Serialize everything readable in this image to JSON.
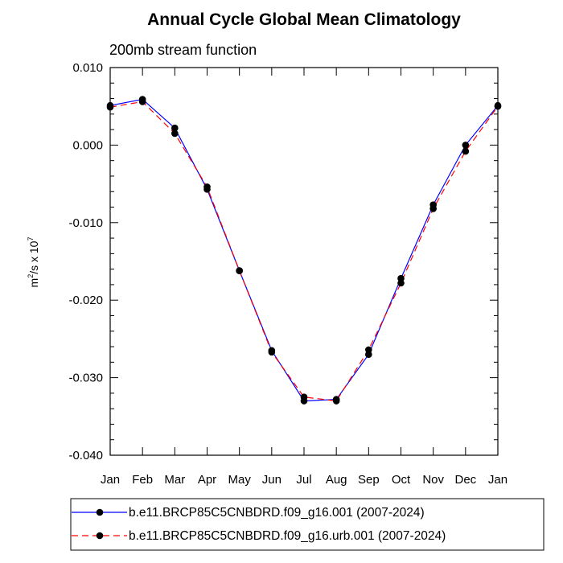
{
  "chart_data": {
    "type": "line",
    "title": "Annual Cycle Global Mean Climatology",
    "subtitle": "200mb stream function",
    "ylabel": {
      "base": "m",
      "sup1": "2",
      "mid": "/s x 10",
      "sup2": "7"
    },
    "xlabel": "",
    "categories": [
      "Jan",
      "Feb",
      "Mar",
      "Apr",
      "May",
      "Jun",
      "Jul",
      "Aug",
      "Sep",
      "Oct",
      "Nov",
      "Dec",
      "Jan"
    ],
    "ylim": [
      -0.04,
      0.01
    ],
    "yticks": [
      0.01,
      0.0,
      -0.01,
      -0.02,
      -0.03,
      -0.04
    ],
    "ytick_labels": [
      "0.010",
      "0.000",
      "-0.010",
      "-0.020",
      "-0.030",
      "-0.040"
    ],
    "series": [
      {
        "name": "b.e11.BRCP85C5CNBDRD.f09_g16.001 (2007-2024)",
        "color": "#0000ff",
        "dash": "solid",
        "values": [
          0.0051,
          0.0059,
          0.0022,
          -0.0057,
          -0.0162,
          -0.0265,
          -0.033,
          -0.0328,
          -0.027,
          -0.0172,
          -0.0077,
          0.0,
          0.0051
        ]
      },
      {
        "name": "b.e11.BRCP85C5CNBDRD.f09_g16.urb.001 (2007-2024)",
        "color": "#ff0000",
        "dash": "dashed",
        "values": [
          0.0049,
          0.0056,
          0.0015,
          -0.0054,
          -0.0162,
          -0.0267,
          -0.0325,
          -0.033,
          -0.0264,
          -0.0178,
          -0.0082,
          -0.0008,
          0.005
        ]
      }
    ],
    "marker_color": "#000000",
    "legend_position": "bottom"
  }
}
